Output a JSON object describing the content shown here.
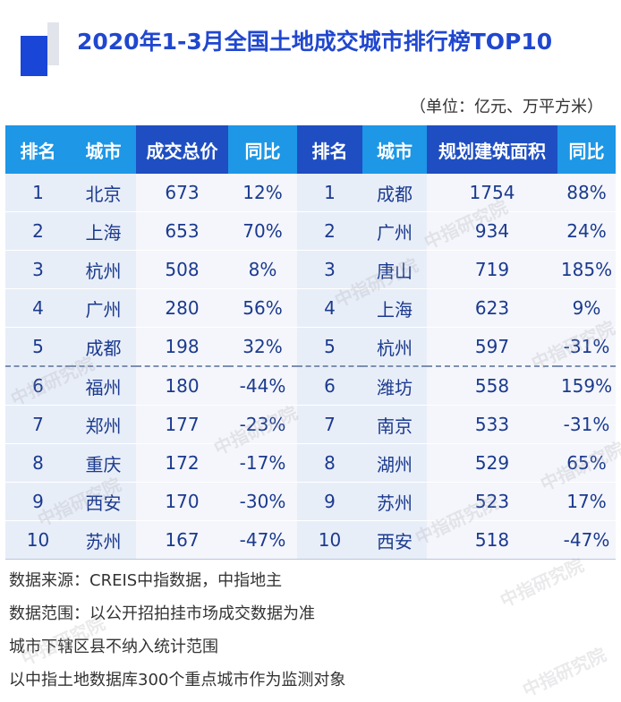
{
  "title": "2020年1-3月全国土地成交城市排行榜TOP10",
  "unit": "（单位：亿元、万平方米）",
  "headers": [
    "排名",
    "城市",
    "成交总价",
    "同比",
    "排名",
    "城市",
    "规划建筑面积",
    "同比"
  ],
  "rows": [
    [
      "1",
      "北京",
      "673",
      "12%",
      "1",
      "成都",
      "1754",
      "88%"
    ],
    [
      "2",
      "上海",
      "653",
      "70%",
      "2",
      "广州",
      "934",
      "24%"
    ],
    [
      "3",
      "杭州",
      "508",
      "8%",
      "3",
      "唐山",
      "719",
      "185%"
    ],
    [
      "4",
      "广州",
      "280",
      "56%",
      "4",
      "上海",
      "623",
      "9%"
    ],
    [
      "5",
      "成都",
      "198",
      "32%",
      "5",
      "杭州",
      "597",
      "-31%"
    ],
    [
      "6",
      "福州",
      "180",
      "-44%",
      "6",
      "潍坊",
      "558",
      "159%"
    ],
    [
      "7",
      "郑州",
      "177",
      "-23%",
      "7",
      "南京",
      "533",
      "-31%"
    ],
    [
      "8",
      "重庆",
      "172",
      "-17%",
      "8",
      "湖州",
      "529",
      "65%"
    ],
    [
      "9",
      "西安",
      "170",
      "-30%",
      "9",
      "苏州",
      "523",
      "17%"
    ],
    [
      "10",
      "苏州",
      "167",
      "-47%",
      "10",
      "西安",
      "518",
      "-47%"
    ]
  ],
  "notes": [
    "数据来源：CREIS中指数据，中指地主",
    "数据范围：以公开招拍挂市场成交数据为准",
    "城市下辖区县不纳入统计范围",
    "以中指土地数据库300个重点城市作为监测对象"
  ],
  "watermark": "中指研究院",
  "colors": {
    "title": "#2047cf",
    "header_light": "#1d97e6",
    "header_dark": "#1f4ec2",
    "cell_text": "#1b3a8e",
    "row_bg_a": "#e8eef8",
    "row_bg_b": "#f4f6fb"
  }
}
